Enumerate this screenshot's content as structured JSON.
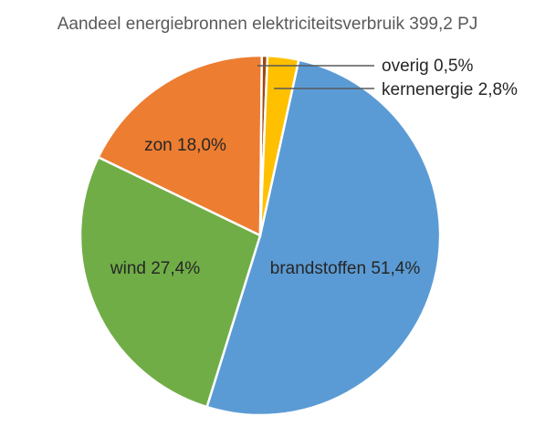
{
  "chart_data": {
    "type": "pie",
    "title": "Aandeel energiebronnen elektriciteitsverbruik 399,2 PJ",
    "slices": [
      {
        "name": "brandstoffen",
        "value": 51.4,
        "label": "brandstoffen 51,4%",
        "color": "#5B9BD5"
      },
      {
        "name": "wind",
        "value": 27.4,
        "label": "wind 27,4%",
        "color": "#70AD47"
      },
      {
        "name": "zon",
        "value": 18.0,
        "label": "zon 18,0%",
        "color": "#ED7D31"
      },
      {
        "name": "overig",
        "value": 0.5,
        "label": "overig 0,5%",
        "color": "#9E480E"
      },
      {
        "name": "kernenergie",
        "value": 2.8,
        "label": "kernenergie 2,8%",
        "color": "#FFC000"
      }
    ],
    "legend": "none",
    "data_labels": "category and percentage"
  }
}
